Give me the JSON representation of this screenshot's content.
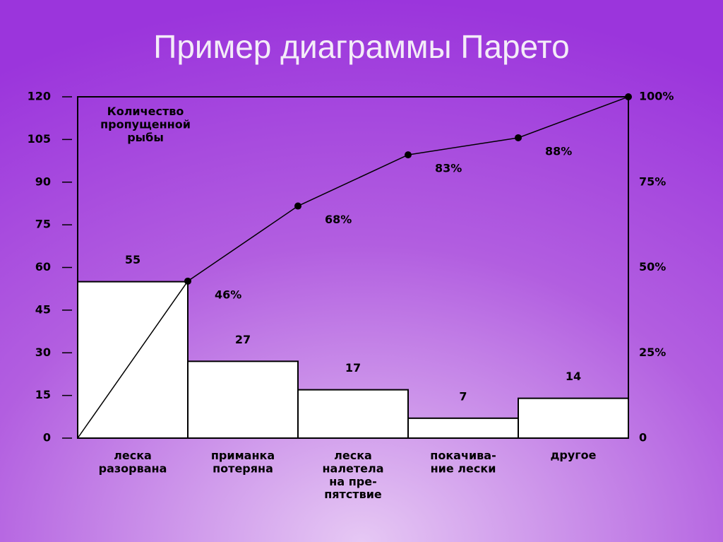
{
  "chart_data": {
    "type": "pareto",
    "title": "Пример диаграммы Парето",
    "y_label": "Количество\nпропущенной\nрыбы",
    "categories": [
      "леска\nразорвана",
      "приманка\nпотеряна",
      "леска\nналетела\nна пре-\nпятствие",
      "покачива-\nние лески",
      "другое"
    ],
    "series": [
      {
        "type": "bar",
        "color": "#ffffff",
        "values": [
          55,
          27,
          17,
          7,
          14
        ]
      },
      {
        "type": "line",
        "axis": "y2",
        "color": "#000000",
        "values": [
          46,
          68,
          83,
          88,
          100
        ],
        "value_labels": [
          "46%",
          "68%",
          "83%",
          "88%",
          null
        ]
      }
    ],
    "ylim": [
      0,
      120
    ],
    "yticks": [
      0,
      15,
      30,
      45,
      60,
      75,
      90,
      105,
      120
    ],
    "y2lim": [
      0,
      100
    ],
    "y2ticks": [
      0,
      {
        "value": 25,
        "label": "25%"
      },
      {
        "value": 50,
        "label": "50%"
      },
      {
        "value": 75,
        "label": "75%"
      },
      {
        "value": 100,
        "label": "100%"
      }
    ]
  }
}
